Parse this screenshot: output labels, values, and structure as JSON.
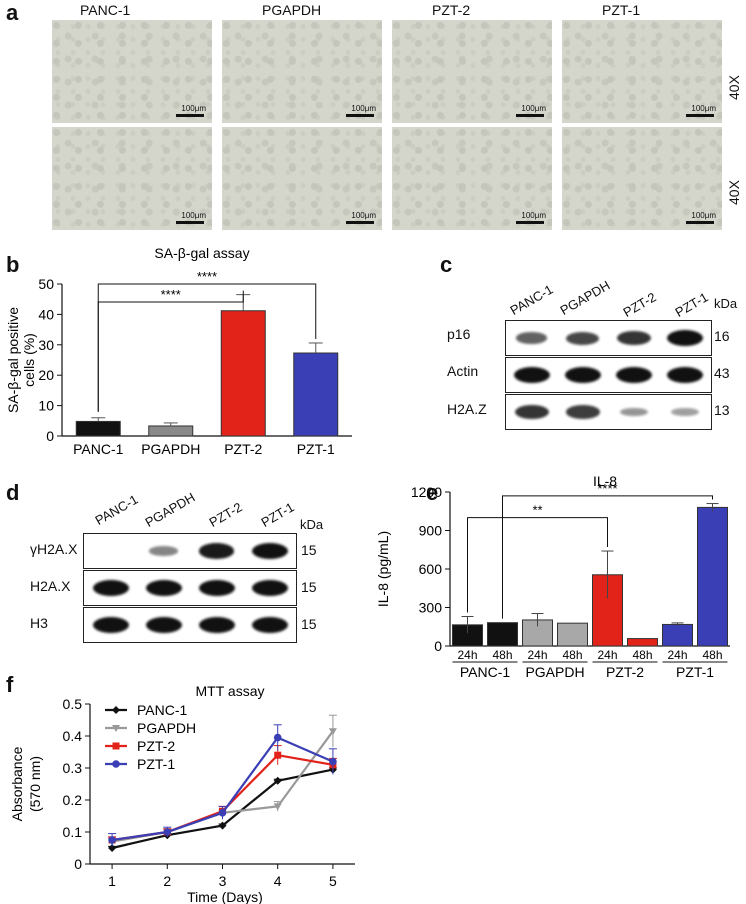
{
  "panel_letters": {
    "a": "a",
    "b": "b",
    "c": "c",
    "d": "d",
    "e": "e",
    "f": "f"
  },
  "panel_a": {
    "columns": [
      "PANC-1",
      "PGAPDH",
      "PZT-2",
      "PZT-1"
    ],
    "magnification": "40X",
    "scale_label": "100μm"
  },
  "panel_c": {
    "lanes": [
      "PANC-1",
      "PGAPDH",
      "PZT-2",
      "PZT-1"
    ],
    "kda_label": "kDa",
    "rows": [
      {
        "name": "p16",
        "kda": "16",
        "intensity": [
          0.55,
          0.7,
          0.8,
          1.0
        ]
      },
      {
        "name": "Actin",
        "kda": "43",
        "intensity": [
          1,
          1,
          1,
          1
        ]
      },
      {
        "name": "H2A.Z",
        "kda": "13",
        "intensity": [
          0.8,
          0.75,
          0.25,
          0.2
        ]
      }
    ]
  },
  "panel_d": {
    "lanes": [
      "PANC-1",
      "PGAPDH",
      "PZT-2",
      "PZT-1"
    ],
    "kda_label": "kDa",
    "rows": [
      {
        "name": "γH2A.X",
        "kda": "15",
        "intensity": [
          0,
          0.35,
          0.95,
          1.0
        ]
      },
      {
        "name": "H2A.X",
        "kda": "15",
        "intensity": [
          1,
          1,
          1,
          1
        ]
      },
      {
        "name": "H3",
        "kda": "15",
        "intensity": [
          1,
          1,
          1,
          1
        ]
      }
    ]
  },
  "chart_data": [
    {
      "panel": "b",
      "type": "bar",
      "title": "SA-β-gal assay",
      "ylabel": "SA-β-gal positive cells (%)",
      "categories": [
        "PANC-1",
        "PGAPDH",
        "PZT-2",
        "PZT-1"
      ],
      "values": [
        4.8,
        3.3,
        41.2,
        27.3
      ],
      "errors": [
        1.2,
        1.0,
        5.3,
        3.3
      ],
      "colors": [
        "#111111",
        "#8a8a8a",
        "#e2231a",
        "#3b3fb5"
      ],
      "ylim": [
        0,
        50
      ],
      "yticks": [
        0,
        10,
        20,
        30,
        40,
        50
      ],
      "significance": [
        {
          "from": "PANC-1",
          "to": "PZT-2",
          "label": "****"
        },
        {
          "from": "PANC-1",
          "to": "PZT-1",
          "label": "****"
        }
      ]
    },
    {
      "panel": "e",
      "type": "bar",
      "title": "IL-8",
      "ylabel": "IL-8 (pg/mL)",
      "groups": [
        "PANC-1",
        "PGAPDH",
        "PZT-2",
        "PZT-1"
      ],
      "categories": [
        "24h",
        "48h",
        "24h",
        "48h",
        "24h",
        "48h",
        "24h",
        "48h"
      ],
      "values": [
        165,
        182,
        203,
        178,
        555,
        58,
        168,
        1080
      ],
      "errors": [
        65,
        0,
        50,
        0,
        185,
        0,
        12,
        30
      ],
      "colors": [
        "#111111",
        "#111111",
        "#a8a8a8",
        "#a8a8a8",
        "#e2231a",
        "#e2231a",
        "#3b3fb5",
        "#3b3fb5"
      ],
      "ylim": [
        0,
        1200
      ],
      "yticks": [
        0,
        300,
        600,
        900,
        1200
      ],
      "significance": [
        {
          "from": 0,
          "to": 4,
          "label": "**"
        },
        {
          "from": 1,
          "to": 7,
          "label": "****"
        }
      ]
    },
    {
      "panel": "f",
      "type": "line",
      "title": "MTT assay",
      "xlabel": "Time (Days)",
      "ylabel": "Absorbance (570 nm)",
      "x": [
        1,
        2,
        3,
        4,
        5
      ],
      "xlim": [
        0.6,
        5.4
      ],
      "ylim": [
        0,
        0.5
      ],
      "yticks": [
        0,
        0.1,
        0.2,
        0.3,
        0.4,
        0.5
      ],
      "legend_position": "top-left",
      "series": [
        {
          "name": "PANC-1",
          "color": "#111111",
          "marker": "diamond",
          "values": [
            0.05,
            0.09,
            0.12,
            0.26,
            0.295
          ],
          "errors": [
            0.005,
            0.005,
            0.005,
            0.005,
            0.005
          ]
        },
        {
          "name": "PGAPDH",
          "color": "#999999",
          "marker": "triangle-down",
          "values": [
            0.07,
            0.1,
            0.16,
            0.18,
            0.415
          ],
          "errors": [
            0.01,
            0.01,
            0.01,
            0.015,
            0.05
          ]
        },
        {
          "name": "PZT-2",
          "color": "#e2231a",
          "marker": "square",
          "values": [
            0.075,
            0.1,
            0.165,
            0.34,
            0.31
          ],
          "errors": [
            0.01,
            0.01,
            0.015,
            0.03,
            0.02
          ]
        },
        {
          "name": "PZT-1",
          "color": "#3b3fb5",
          "marker": "circle",
          "values": [
            0.075,
            0.1,
            0.16,
            0.395,
            0.32
          ],
          "errors": [
            0.02,
            0.015,
            0.02,
            0.04,
            0.04
          ]
        }
      ]
    }
  ]
}
